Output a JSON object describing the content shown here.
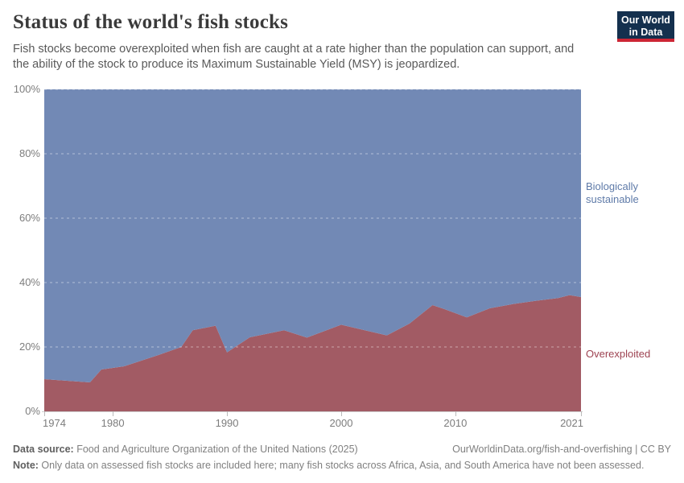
{
  "header": {
    "title": "Status of the world's fish stocks",
    "subtitle_lines": [
      "Fish stocks become overexploited when fish are caught at a rate higher than the population can support, and",
      "the ability of the stock to produce its Maximum Sustainable Yield (MSY) is jeopardized."
    ],
    "logo": {
      "line1": "Our World",
      "line2": "in Data",
      "bg": "#14304e",
      "stripe": "#cd2635"
    }
  },
  "chart_data": {
    "type": "area",
    "stacked": true,
    "title": "Status of the world's fish stocks",
    "xlabel": "",
    "ylabel": "",
    "unit": "%",
    "x": [
      1974,
      1978,
      1979,
      1981,
      1984,
      1986,
      1987,
      1989,
      1990,
      1992,
      1995,
      1997,
      2000,
      2004,
      2006,
      2008,
      2009,
      2011,
      2013,
      2015,
      2017,
      2019,
      2020,
      2021
    ],
    "series": [
      {
        "name": "Overexploited",
        "color": "#a25b64",
        "label_color": "#9e4352",
        "values": [
          10.0,
          9.0,
          13.0,
          14.0,
          17.5,
          20.0,
          25.2,
          26.6,
          18.3,
          23.0,
          25.2,
          22.9,
          26.9,
          23.6,
          27.3,
          33.0,
          31.8,
          29.2,
          32.0,
          33.3,
          34.3,
          35.2,
          36.1,
          35.5
        ]
      },
      {
        "name": "Biologically sustainable",
        "color": "#7289b5",
        "label_color": "#5e7aa8",
        "values": [
          90.0,
          91.0,
          87.0,
          86.0,
          82.5,
          80.0,
          74.8,
          73.4,
          81.7,
          77.0,
          74.8,
          77.1,
          73.1,
          76.4,
          72.7,
          67.0,
          68.2,
          70.8,
          68.0,
          66.7,
          65.7,
          64.8,
          63.9,
          64.5
        ]
      }
    ],
    "x_range": [
      1974,
      2021
    ],
    "y_range": [
      0,
      100
    ],
    "x_ticks": [
      1974,
      1980,
      1990,
      2000,
      2010,
      2021
    ],
    "y_ticks": [
      0,
      20,
      40,
      60,
      80,
      100
    ],
    "grid": "dashed",
    "legend_position": "right-annotations"
  },
  "footer": {
    "source_label": "Data source:",
    "source_text": " Food and Agriculture Organization of the United Nations (2025)",
    "credit": "OurWorldinData.org/fish-and-overfishing | CC BY",
    "note_label": "Note:",
    "note_text": " Only data on assessed fish stocks are included here; many fish stocks across Africa, Asia, and South America have not been assessed."
  }
}
